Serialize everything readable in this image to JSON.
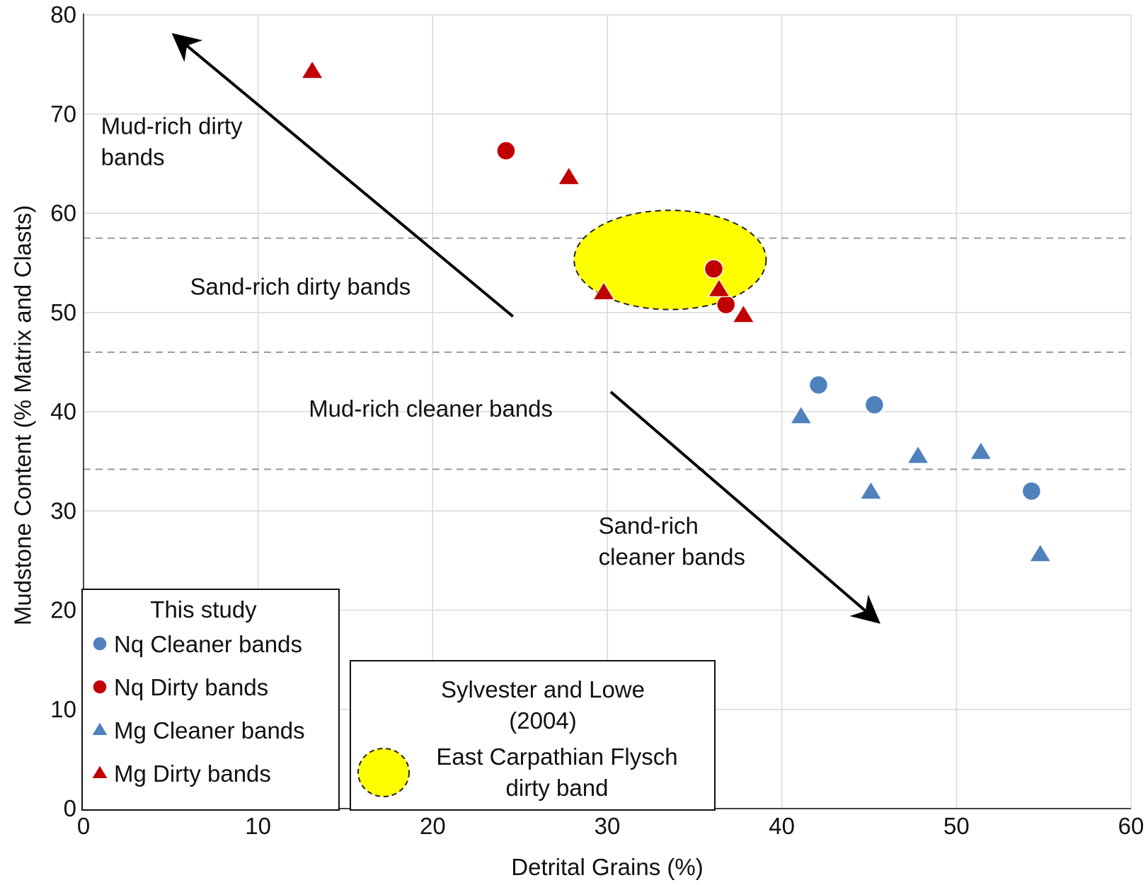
{
  "chart_data": {
    "type": "scatter",
    "title": "",
    "xlabel": "Detrital Grains (%)",
    "ylabel": "Mudstone Content  (% Matrix and Clasts)",
    "xlim": [
      0,
      60
    ],
    "ylim": [
      0,
      80
    ],
    "x_ticks": [
      "0",
      "10",
      "20",
      "30",
      "40",
      "50",
      "60"
    ],
    "y_ticks": [
      "0",
      "10",
      "20",
      "30",
      "40",
      "50",
      "60",
      "70",
      "80"
    ],
    "grid": true,
    "band_boundaries_y": [
      57.5,
      46,
      34.2
    ],
    "series": [
      {
        "name": "Nq Cleaner bands",
        "marker": "circle",
        "color": "#4f81bd",
        "points": [
          [
            42.1,
            42.7
          ],
          [
            45.3,
            40.7
          ],
          [
            54.3,
            32.0
          ]
        ]
      },
      {
        "name": "Nq Dirty bands",
        "marker": "circle",
        "color": "#c00000",
        "points": [
          [
            24.2,
            66.3
          ],
          [
            36.1,
            54.4
          ],
          [
            36.8,
            50.8
          ]
        ]
      },
      {
        "name": "Mg Cleaner bands",
        "marker": "triangle",
        "color": "#4f81bd",
        "points": [
          [
            41.1,
            39.5
          ],
          [
            45.1,
            31.9
          ],
          [
            47.8,
            35.5
          ],
          [
            51.4,
            35.9
          ],
          [
            54.8,
            25.6
          ]
        ]
      },
      {
        "name": "Mg Dirty bands",
        "marker": "triangle",
        "color": "#c00000",
        "points": [
          [
            13.1,
            74.3
          ],
          [
            27.8,
            63.6
          ],
          [
            29.8,
            52.0
          ],
          [
            36.4,
            52.3
          ],
          [
            37.8,
            49.7
          ]
        ]
      }
    ],
    "region": {
      "name": "East Carpathian Flysch dirty band",
      "color": "#ffff00",
      "center": [
        33.6,
        55.3
      ],
      "radius": [
        5.5,
        5.0
      ]
    },
    "annotations": [
      {
        "id": "mud-rich-dirty",
        "lines": [
          "Mud-rich dirty",
          "bands"
        ],
        "x": 1.0,
        "y": 68.0
      },
      {
        "id": "sand-rich-dirty",
        "lines": [
          "Sand-rich dirty bands"
        ],
        "x": 6.1,
        "y": 51.8
      },
      {
        "id": "mud-rich-cleaner",
        "lines": [
          "Mud-rich cleaner bands"
        ],
        "x": 12.9,
        "y": 39.5
      },
      {
        "id": "sand-rich-cleaner",
        "lines": [
          "Sand-rich",
          "cleaner bands"
        ],
        "x": 29.5,
        "y": 27.7
      }
    ],
    "arrows": [
      {
        "from": [
          24.6,
          49.6
        ],
        "to": [
          5.3,
          77.8
        ]
      },
      {
        "from": [
          30.2,
          42.0
        ],
        "to": [
          45.4,
          19.0
        ]
      }
    ],
    "legend": {
      "title": "This study",
      "placement": "bottom-left",
      "entries": [
        "Nq Cleaner bands",
        "Nq Dirty bands",
        "Mg Cleaner bands",
        "Mg Dirty bands"
      ]
    },
    "legend_reference": {
      "title_lines": [
        "Sylvester and Lowe",
        "(2004)"
      ],
      "entry_lines": [
        "East Carpathian Flysch",
        "dirty band"
      ],
      "placement": "bottom-center"
    }
  }
}
